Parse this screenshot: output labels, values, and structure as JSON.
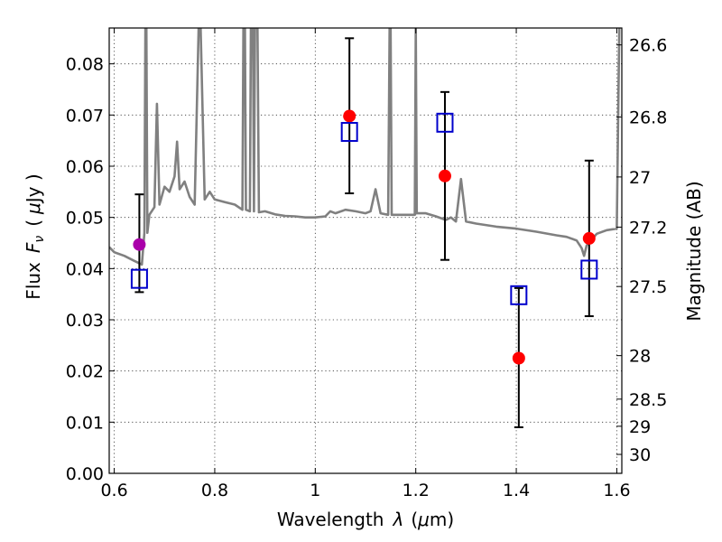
{
  "chart_data": {
    "type": "scatter",
    "title": "",
    "xlabel": {
      "prefix": "Wavelength",
      "symbol": "λ",
      "unit_open": "(",
      "unit_mu": "μ",
      "unit_rest": "m)"
    },
    "ylabel": {
      "prefix": "Flux",
      "symbol": "F",
      "subscript": "ν",
      "unit_open": "(",
      "unit_mu": "μ",
      "unit_rest": "Jy )"
    },
    "ylabel_right": "Magnitude (AB)",
    "xlim": [
      0.59,
      1.61
    ],
    "ylim": [
      0.0,
      0.087
    ],
    "xticks": [
      {
        "value": 0.6,
        "label": "0.6"
      },
      {
        "value": 0.8,
        "label": "0.8"
      },
      {
        "value": 1.0,
        "label": "1"
      },
      {
        "value": 1.2,
        "label": "1.2"
      },
      {
        "value": 1.4,
        "label": "1.4"
      },
      {
        "value": 1.6,
        "label": "1.6"
      }
    ],
    "yticks": [
      {
        "value": 0.0,
        "label": "0.00"
      },
      {
        "value": 0.01,
        "label": "0.01"
      },
      {
        "value": 0.02,
        "label": "0.02"
      },
      {
        "value": 0.03,
        "label": "0.03"
      },
      {
        "value": 0.04,
        "label": "0.04"
      },
      {
        "value": 0.05,
        "label": "0.05"
      },
      {
        "value": 0.06,
        "label": "0.06"
      },
      {
        "value": 0.07,
        "label": "0.07"
      },
      {
        "value": 0.08,
        "label": "0.08"
      }
    ],
    "right_ticks": [
      {
        "flux": 0.0837,
        "label": "26.6"
      },
      {
        "flux": 0.0696,
        "label": "26.8"
      },
      {
        "flux": 0.0579,
        "label": "27"
      },
      {
        "flux": 0.0481,
        "label": "27.2"
      },
      {
        "flux": 0.0365,
        "label": "27.5"
      },
      {
        "flux": 0.023,
        "label": "28"
      },
      {
        "flux": 0.0145,
        "label": "28.5"
      },
      {
        "flux": 0.0092,
        "label": "29"
      },
      {
        "flux": 0.0037,
        "label": "30"
      }
    ],
    "grid": true,
    "colors": {
      "spectrum": "#808080",
      "observed": "#ff0000",
      "observed_alt": "#aa00aa",
      "model": "#0000cc",
      "errorbar": "#000000"
    },
    "series": [
      {
        "name": "model_spectrum",
        "kind": "line",
        "points": [
          [
            0.59,
            0.0442
          ],
          [
            0.6,
            0.0432
          ],
          [
            0.62,
            0.0425
          ],
          [
            0.64,
            0.0415
          ],
          [
            0.655,
            0.0408
          ],
          [
            0.66,
            0.047
          ],
          [
            0.662,
            0.087
          ],
          [
            0.664,
            0.087
          ],
          [
            0.666,
            0.047
          ],
          [
            0.67,
            0.0505
          ],
          [
            0.68,
            0.052
          ],
          [
            0.685,
            0.0722
          ],
          [
            0.69,
            0.0525
          ],
          [
            0.7,
            0.056
          ],
          [
            0.71,
            0.055
          ],
          [
            0.72,
            0.058
          ],
          [
            0.725,
            0.0648
          ],
          [
            0.73,
            0.0555
          ],
          [
            0.74,
            0.057
          ],
          [
            0.75,
            0.054
          ],
          [
            0.76,
            0.0525
          ],
          [
            0.768,
            0.087
          ],
          [
            0.772,
            0.087
          ],
          [
            0.78,
            0.0535
          ],
          [
            0.79,
            0.055
          ],
          [
            0.8,
            0.0535
          ],
          [
            0.82,
            0.053
          ],
          [
            0.84,
            0.0525
          ],
          [
            0.855,
            0.0515
          ],
          [
            0.857,
            0.087
          ],
          [
            0.86,
            0.087
          ],
          [
            0.862,
            0.0515
          ],
          [
            0.87,
            0.0512
          ],
          [
            0.872,
            0.087
          ],
          [
            0.876,
            0.087
          ],
          [
            0.878,
            0.0512
          ],
          [
            0.88,
            0.087
          ],
          [
            0.885,
            0.087
          ],
          [
            0.888,
            0.051
          ],
          [
            0.9,
            0.0512
          ],
          [
            0.92,
            0.0506
          ],
          [
            0.94,
            0.0503
          ],
          [
            0.96,
            0.0502
          ],
          [
            0.98,
            0.05
          ],
          [
            1.0,
            0.05
          ],
          [
            1.02,
            0.0502
          ],
          [
            1.03,
            0.0512
          ],
          [
            1.04,
            0.0508
          ],
          [
            1.06,
            0.0515
          ],
          [
            1.08,
            0.0512
          ],
          [
            1.1,
            0.0508
          ],
          [
            1.11,
            0.0512
          ],
          [
            1.12,
            0.0555
          ],
          [
            1.13,
            0.0508
          ],
          [
            1.145,
            0.0505
          ],
          [
            1.148,
            0.087
          ],
          [
            1.15,
            0.087
          ],
          [
            1.152,
            0.0505
          ],
          [
            1.18,
            0.0505
          ],
          [
            1.198,
            0.0505
          ],
          [
            1.2,
            0.087
          ],
          [
            1.202,
            0.0508
          ],
          [
            1.22,
            0.0508
          ],
          [
            1.24,
            0.0502
          ],
          [
            1.26,
            0.0495
          ],
          [
            1.27,
            0.05
          ],
          [
            1.28,
            0.0492
          ],
          [
            1.29,
            0.0575
          ],
          [
            1.3,
            0.0492
          ],
          [
            1.32,
            0.0488
          ],
          [
            1.36,
            0.0482
          ],
          [
            1.4,
            0.0478
          ],
          [
            1.44,
            0.0472
          ],
          [
            1.48,
            0.0465
          ],
          [
            1.5,
            0.0462
          ],
          [
            1.52,
            0.0455
          ],
          [
            1.53,
            0.044
          ],
          [
            1.535,
            0.0425
          ],
          [
            1.54,
            0.0445
          ],
          [
            1.56,
            0.0468
          ],
          [
            1.58,
            0.0475
          ],
          [
            1.6,
            0.0478
          ],
          [
            1.605,
            0.087
          ]
        ]
      },
      {
        "name": "observed",
        "kind": "points_with_errors",
        "points": [
          {
            "x": 0.65,
            "y": 0.0447,
            "yerr_low": 0.0354,
            "yerr_high": 0.0545,
            "color": "#aa00aa"
          },
          {
            "x": 1.068,
            "y": 0.0698,
            "yerr_low": 0.0547,
            "yerr_high": 0.085,
            "color": "#ff0000"
          },
          {
            "x": 1.258,
            "y": 0.0581,
            "yerr_low": 0.0417,
            "yerr_high": 0.0745,
            "color": "#ff0000"
          },
          {
            "x": 1.405,
            "y": 0.0225,
            "yerr_low": 0.009,
            "yerr_high": 0.0362,
            "color": "#ff0000"
          },
          {
            "x": 1.545,
            "y": 0.0459,
            "yerr_low": 0.0307,
            "yerr_high": 0.0611,
            "color": "#ff0000"
          }
        ]
      },
      {
        "name": "model_photometry",
        "kind": "open_squares",
        "points": [
          {
            "x": 0.65,
            "y": 0.038
          },
          {
            "x": 1.068,
            "y": 0.0667
          },
          {
            "x": 1.258,
            "y": 0.0685
          },
          {
            "x": 1.405,
            "y": 0.0348
          },
          {
            "x": 1.545,
            "y": 0.0398
          }
        ]
      }
    ]
  }
}
